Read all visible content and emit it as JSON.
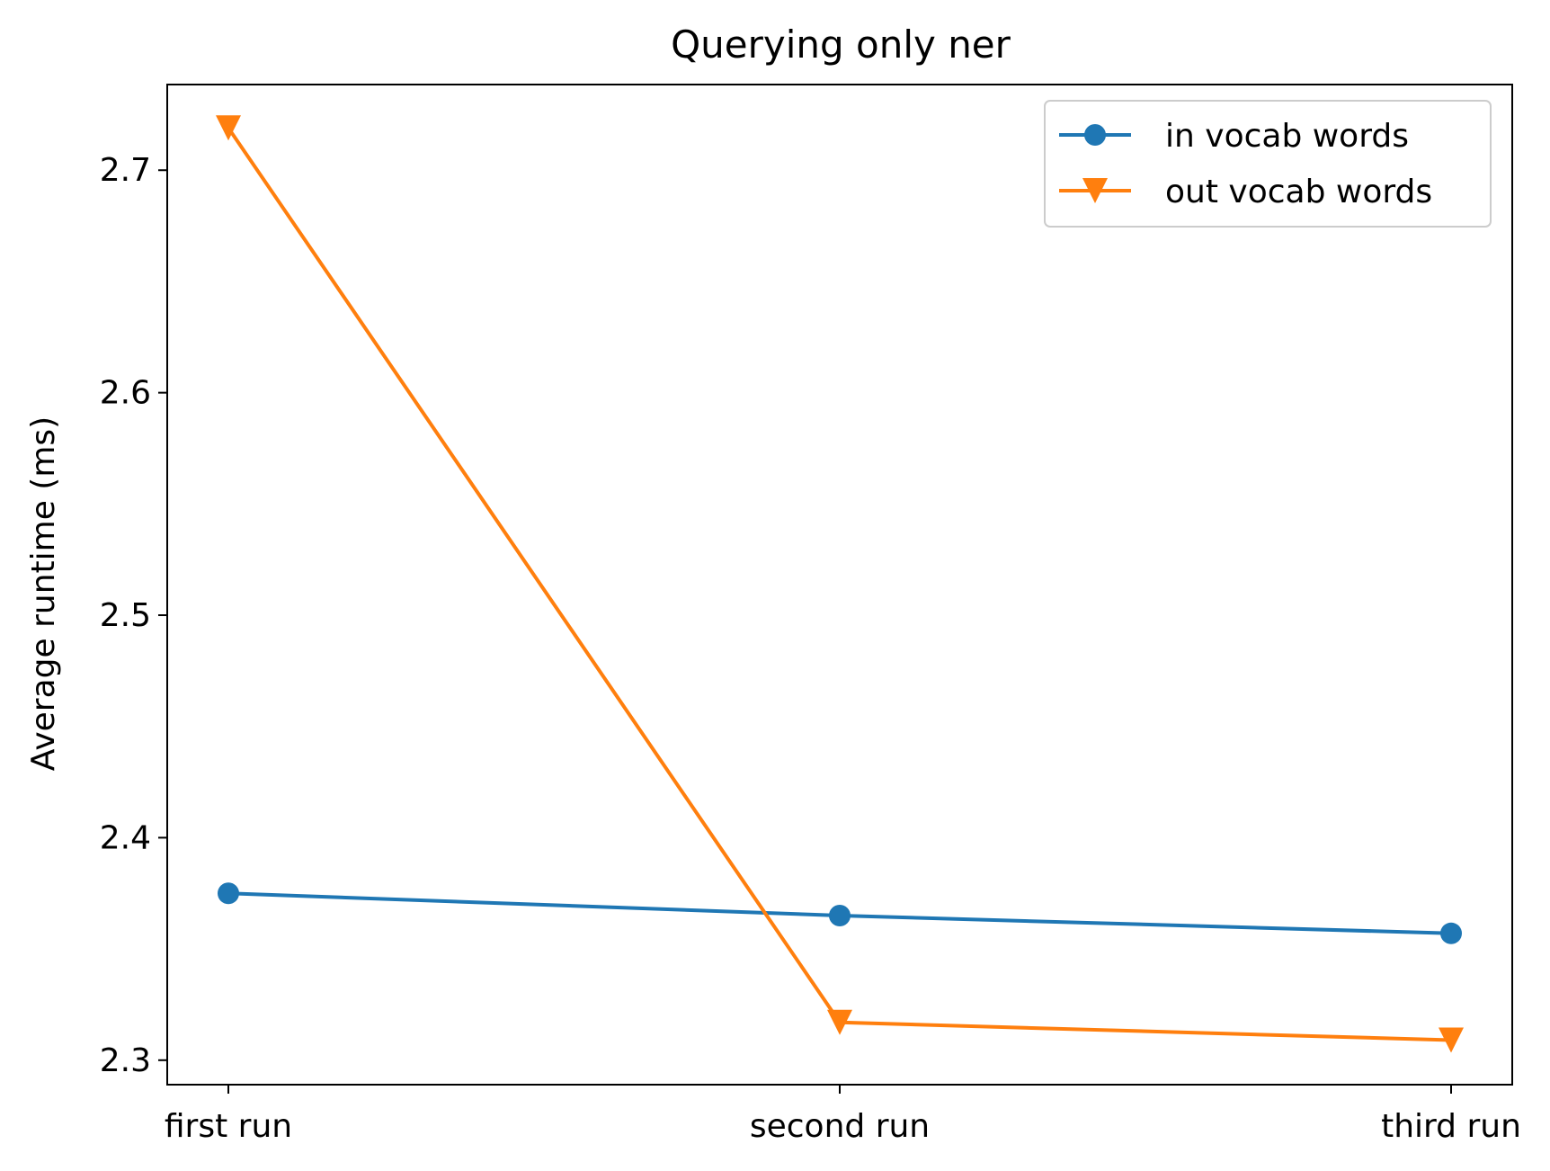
{
  "chart_data": {
    "type": "line",
    "title": "Querying only ner",
    "xlabel": "",
    "ylabel": "Average runtime (ms)",
    "categories": [
      "first run",
      "second run",
      "third run"
    ],
    "ylim": [
      2.289,
      2.7385
    ],
    "yticks": [
      "2.3",
      "2.4",
      "2.5",
      "2.6",
      "2.7"
    ],
    "grid": false,
    "legend_position": "upper right",
    "series": [
      {
        "name": "in vocab words",
        "values": [
          2.375,
          2.365,
          2.357
        ],
        "color": "#1f77b4",
        "marker": "circle"
      },
      {
        "name": "out vocab words",
        "values": [
          2.719,
          2.317,
          2.309
        ],
        "color": "#ff7f0e",
        "marker": "triangle-down"
      }
    ]
  }
}
